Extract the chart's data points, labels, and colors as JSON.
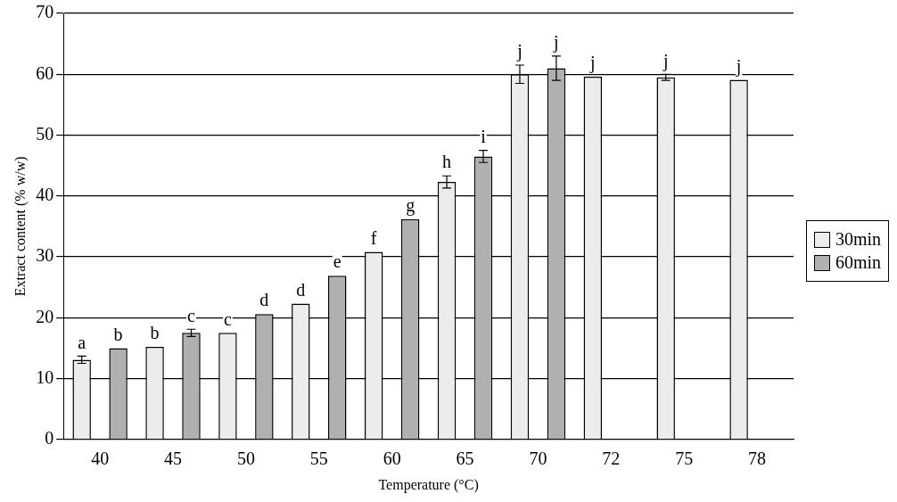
{
  "chart_data": {
    "type": "bar",
    "xlabel": "Temperature (°C)",
    "ylabel": "Extract content (% w/w)",
    "categories": [
      "40",
      "45",
      "50",
      "55",
      "60",
      "65",
      "70",
      "72",
      "75",
      "78"
    ],
    "series": [
      {
        "name": "30min",
        "color": "#ececec",
        "values": [
          13.1,
          15.2,
          17.5,
          22.3,
          30.8,
          42.3,
          60,
          59.6,
          59.5,
          59.1
        ],
        "errors": [
          0.6,
          null,
          null,
          null,
          null,
          1,
          1.5,
          null,
          0.5,
          null
        ],
        "value_labels": [
          "a",
          "b",
          "c",
          "d",
          "f",
          "h",
          "j",
          "j",
          "j",
          "j"
        ]
      },
      {
        "name": "60min",
        "color": "#b0b0b0",
        "values": [
          15,
          17.5,
          20.6,
          26.9,
          36.2,
          46.5,
          61,
          null,
          null,
          null
        ],
        "errors": [
          null,
          0.6,
          null,
          null,
          null,
          1,
          2,
          null,
          null,
          null
        ],
        "value_labels": [
          "b",
          "c",
          "d",
          "e",
          "g",
          "i",
          "j",
          null,
          null,
          null
        ]
      }
    ],
    "ylim": [
      0,
      70
    ],
    "yticks": [
      0,
      10,
      20,
      30,
      40,
      50,
      60,
      70
    ],
    "grid": "y",
    "legend": "right"
  }
}
